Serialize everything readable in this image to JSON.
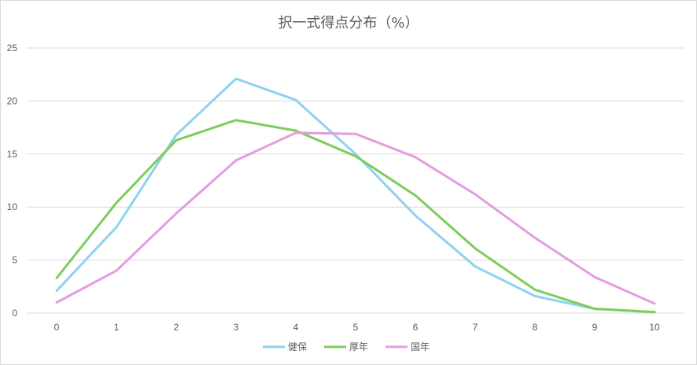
{
  "chart_data": {
    "type": "line",
    "title": "択一式得点分布（%）",
    "xlabel": "",
    "ylabel": "",
    "x": [
      0,
      1,
      2,
      3,
      4,
      5,
      6,
      7,
      8,
      9,
      10
    ],
    "ylim": [
      0,
      25
    ],
    "yticks": [
      0,
      5,
      10,
      15,
      20,
      25
    ],
    "grid": true,
    "legend_position": "bottom",
    "series": [
      {
        "name": "健保",
        "color": "#8dd3f0",
        "values": [
          2.1,
          8.1,
          16.8,
          22.1,
          20.1,
          15.0,
          9.2,
          4.4,
          1.6,
          0.4,
          0.1
        ]
      },
      {
        "name": "厚年",
        "color": "#7ccd5a",
        "values": [
          3.3,
          10.4,
          16.3,
          18.2,
          17.2,
          14.8,
          11.1,
          6.1,
          2.2,
          0.4,
          0.1
        ]
      },
      {
        "name": "国年",
        "color": "#e49ce0",
        "values": [
          1.0,
          4.0,
          9.4,
          14.4,
          17.0,
          16.9,
          14.7,
          11.2,
          7.1,
          3.4,
          0.9
        ]
      }
    ]
  }
}
